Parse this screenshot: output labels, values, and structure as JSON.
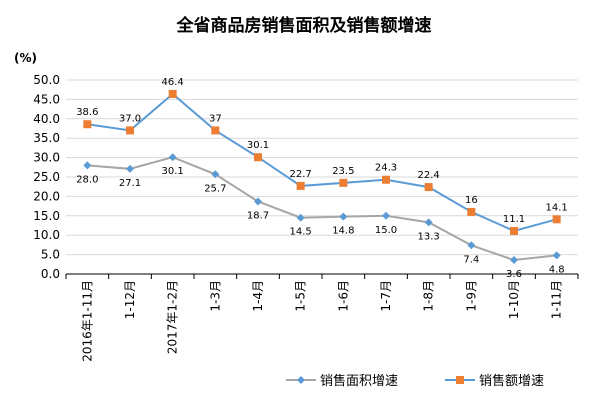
{
  "chart_data": {
    "type": "line",
    "title": "全省商品房销售面积及销售额增速",
    "unit_label": "(%)",
    "categories": [
      "2016年1-11月",
      "1-12月",
      "2017年1-2月",
      "1-3月",
      "1-4月",
      "1-5月",
      "1-6月",
      "1-7月",
      "1-8月",
      "1-9月",
      "1-10月",
      "1-11月"
    ],
    "ylim": [
      0,
      50
    ],
    "yticks": [
      "0.0",
      "5.0",
      "10.0",
      "15.0",
      "20.0",
      "25.0",
      "30.0",
      "35.0",
      "40.0",
      "45.0",
      "50.0"
    ],
    "series": [
      {
        "name": "销售面积增速",
        "color": "#a6a6a6",
        "marker_color": "#5b9bd5",
        "values": [
          28.0,
          27.1,
          30.1,
          25.7,
          18.7,
          14.5,
          14.8,
          15.0,
          13.3,
          7.4,
          3.6,
          4.8
        ],
        "labels": [
          "28.0",
          "27.1",
          "30.1",
          "25.7",
          "18.7",
          "14.5",
          "14.8",
          "15.0",
          "13.3",
          "7.4",
          "3.6",
          "4.8"
        ]
      },
      {
        "name": "销售额增速",
        "color": "#5b9bd5",
        "marker_color": "#ed7d31",
        "values": [
          38.6,
          37.0,
          46.4,
          37,
          30.1,
          22.7,
          23.5,
          24.3,
          22.4,
          16,
          11.1,
          14.1
        ],
        "labels": [
          "38.6",
          "37.0",
          "46.4",
          "37",
          "30.1",
          "22.7",
          "23.5",
          "24.3",
          "22.4",
          "16",
          "11.1",
          "14.1"
        ]
      }
    ],
    "legend_position": "bottom"
  }
}
